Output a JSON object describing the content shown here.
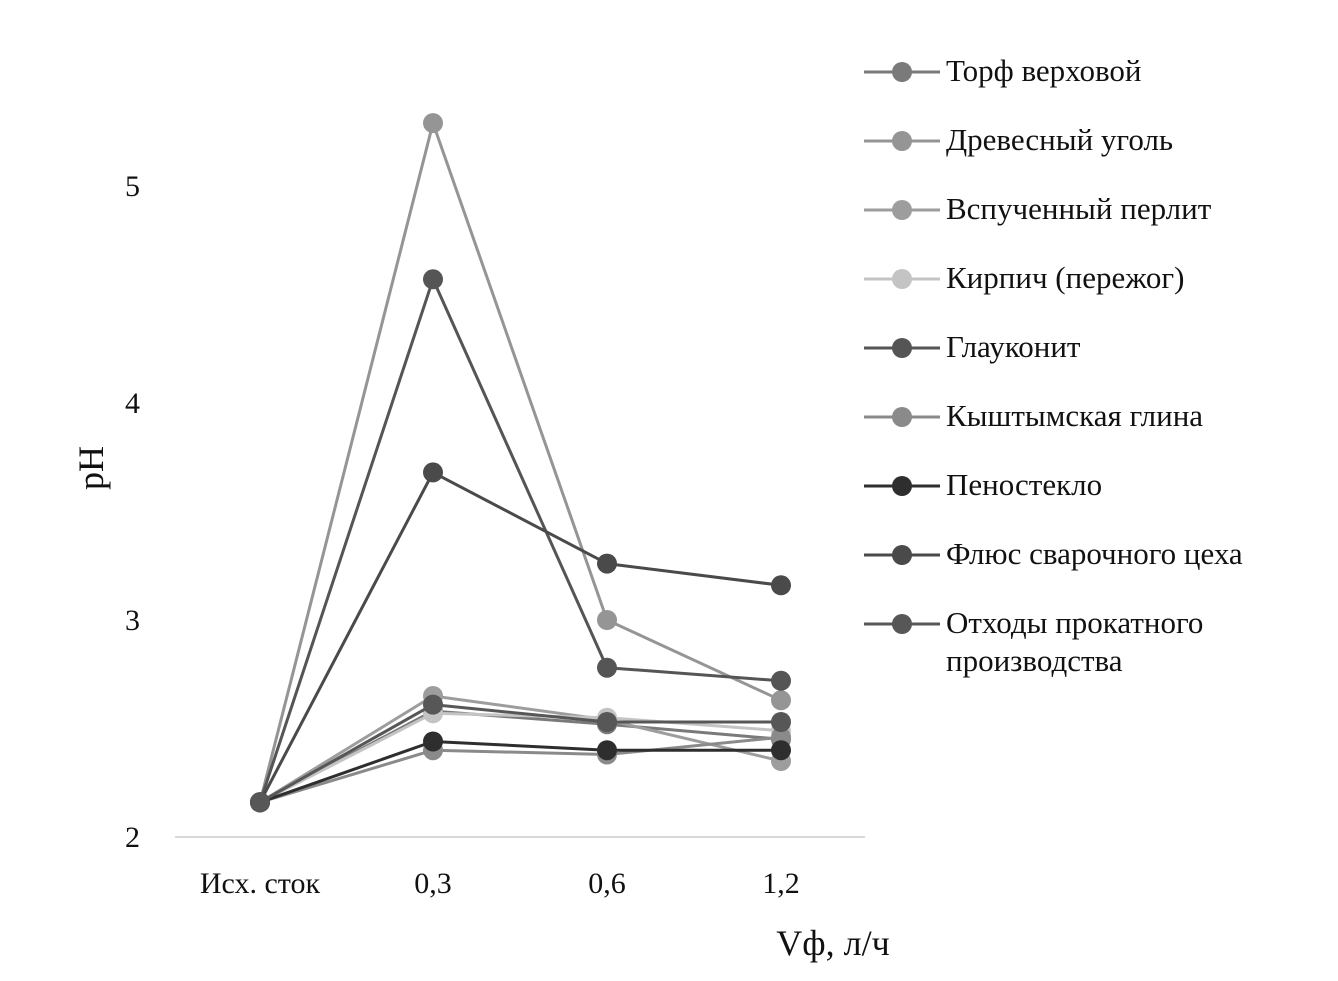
{
  "chart_data": {
    "type": "line",
    "title": "",
    "xlabel": "Vф, л/ч",
    "ylabel": "pH",
    "categories": [
      "Исх. сток",
      "0,3",
      "0,6",
      "1,2"
    ],
    "ylim": [
      2,
      5.5
    ],
    "yticks": [
      "2",
      "3",
      "4",
      "5"
    ],
    "ytick_values": [
      2,
      3,
      4,
      5
    ],
    "grid": false,
    "legend_position": "right",
    "series": [
      {
        "name": "Торф верховой",
        "values": [
          2.16,
          2.58,
          2.52,
          2.45
        ],
        "color": "#7a7a7a"
      },
      {
        "name": "Древесный уголь",
        "values": [
          2.16,
          5.29,
          3.0,
          2.63
        ],
        "color": "#959595"
      },
      {
        "name": "Вспученный перлит",
        "values": [
          2.16,
          2.65,
          2.54,
          2.35
        ],
        "color": "#9d9d9d"
      },
      {
        "name": "Кирпич (пережог)",
        "values": [
          2.16,
          2.57,
          2.55,
          2.49
        ],
        "color": "#c4c4c4"
      },
      {
        "name": "Глауконит",
        "values": [
          2.16,
          4.57,
          2.78,
          2.72
        ],
        "color": "#555555"
      },
      {
        "name": "Кыштымская глина",
        "values": [
          2.16,
          2.4,
          2.38,
          2.46
        ],
        "color": "#8a8a8a"
      },
      {
        "name": "Пеностекло",
        "values": [
          2.16,
          2.44,
          2.4,
          2.4
        ],
        "color": "#2e2e2e"
      },
      {
        "name": "Флюс сварочного цеха",
        "values": [
          2.16,
          3.68,
          3.26,
          3.16
        ],
        "color": "#4a4a4a"
      },
      {
        "name": "Отходы прокатного\nпроизводства",
        "values": [
          2.16,
          2.61,
          2.53,
          2.53
        ],
        "color": "#575757"
      }
    ]
  }
}
